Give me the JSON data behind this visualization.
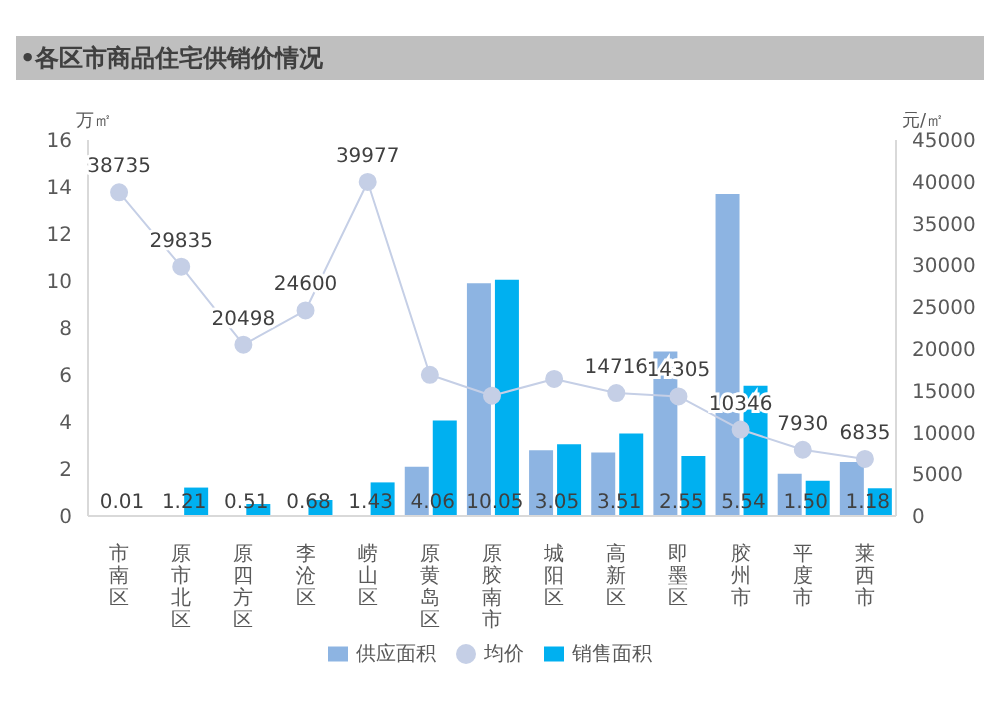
{
  "chart_data": {
    "type": "bar",
    "title": "•各区市商品住宅供销价情况",
    "ylabel": "万㎡",
    "y2label": "元/㎡",
    "categories": [
      "市南区",
      "原市北区",
      "原四方区",
      "李沧区",
      "崂山区",
      "原黄岛区",
      "原胶南市",
      "城阳区",
      "高新区",
      "即墨区",
      "胶州市",
      "平度市",
      "莱西市"
    ],
    "series": [
      {
        "name": "供应面积",
        "color": "#8db4e2",
        "values": [
          0,
          0,
          0,
          0,
          0,
          2.1,
          9.9,
          2.8,
          2.7,
          7,
          13.7,
          1.8,
          2.3
        ]
      },
      {
        "name": "销售面积",
        "color": "#00b0f0",
        "values": [
          0.01,
          1.21,
          0.51,
          0.68,
          1.43,
          4.06,
          10.05,
          3.05,
          3.51,
          2.55,
          5.54,
          1.5,
          1.18
        ],
        "value_labels": [
          "0.01",
          "1.21",
          "0.51",
          "0.68",
          "1.43",
          "4.06",
          "10.05",
          "3.05",
          "3.51",
          "2.55",
          "5.54",
          "1.50",
          "1.18"
        ]
      },
      {
        "name": "均价",
        "type": "line",
        "axis": "y2",
        "color": "#c5cfe6",
        "values": [
          38735,
          29835,
          20498,
          24600,
          39977,
          16900,
          14400,
          16400,
          14716,
          14305,
          10346,
          7930,
          6835
        ],
        "value_labels": [
          "38735",
          "29835",
          "20498",
          "24600",
          "39977",
          null,
          null,
          null,
          "14716",
          "14305",
          "10346",
          "7930",
          "6835"
        ]
      }
    ],
    "ylim": [
      0,
      16
    ],
    "yticks": [
      0,
      2,
      4,
      6,
      8,
      10,
      12,
      14,
      16
    ],
    "y2lim": [
      0,
      45000
    ],
    "y2ticks": [
      0,
      5000,
      10000,
      15000,
      20000,
      25000,
      30000,
      35000,
      40000,
      45000
    ],
    "legend": "bottom",
    "marker": "circle",
    "grid": false
  }
}
